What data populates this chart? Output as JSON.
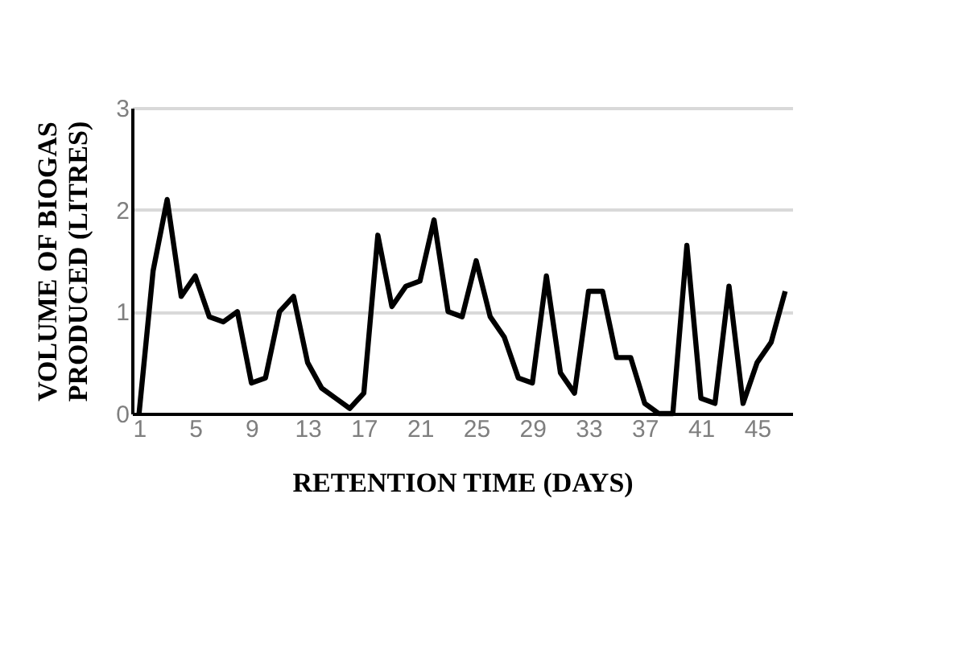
{
  "chart_data": {
    "type": "line",
    "xlabel": "RETENTION TIME (DAYS)",
    "ylabel": "VOLUME OF BIOGAS PRODUCED (LITRES)",
    "categories": [
      "1",
      null,
      null,
      null,
      "5",
      null,
      null,
      null,
      "9",
      null,
      null,
      null,
      "13",
      null,
      null,
      null,
      "17",
      null,
      null,
      null,
      "21",
      null,
      null,
      null,
      "25",
      null,
      null,
      null,
      "29",
      null,
      null,
      null,
      "33",
      null,
      null,
      null,
      "37",
      null,
      null,
      null,
      "41",
      null,
      null,
      null,
      "45",
      null,
      null
    ],
    "series": [
      {
        "color": "#000000",
        "values": [
          0,
          1.4,
          2.1,
          1.15,
          1.35,
          0.95,
          0.9,
          1.0,
          0.3,
          0.35,
          1.0,
          1.15,
          0.5,
          0.25,
          0.15,
          0.05,
          0.2,
          1.75,
          1.05,
          1.25,
          1.3,
          1.9,
          1.0,
          0.95,
          1.5,
          0.95,
          0.75,
          0.35,
          0.3,
          1.35,
          0.4,
          0.2,
          1.2,
          1.2,
          0.55,
          0.55,
          0.1,
          0,
          0,
          1.65,
          0.15,
          0.1,
          1.25,
          0.1,
          0.5,
          0.7,
          1.2
        ]
      }
    ],
    "ylim": [
      0,
      3
    ],
    "yticks": [
      0,
      1,
      2,
      3
    ],
    "grid": "y",
    "legend": false,
    "marker": "none",
    "line_style": "solid"
  }
}
